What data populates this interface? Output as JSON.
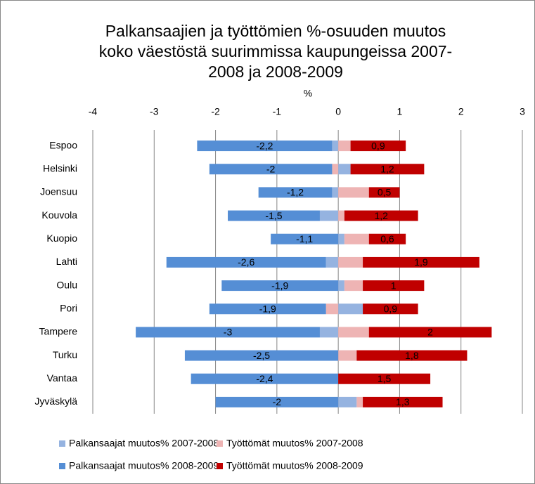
{
  "chart_data": {
    "type": "stacked_hbar",
    "title": [
      "Palkansaajien ja työttömien %-osuuden muutos",
      "koko väestöstä suurimmissa kaupungeissa 2007-",
      "2008 ja 2008-2009"
    ],
    "x_label": "%",
    "categories": [
      "Espoo",
      "Helsinki",
      "Joensuu",
      "Kouvola",
      "Kuopio",
      "Lahti",
      "Oulu",
      "Pori",
      "Tampere",
      "Turku",
      "Vantaa",
      "Jyväskylä"
    ],
    "series": [
      {
        "name": "Palkansaajat muutos% 2007-2008",
        "color": "#95b3e0",
        "values": [
          -0.1,
          0.2,
          -0.1,
          -0.3,
          0.1,
          -0.2,
          0.1,
          0.4,
          -0.3,
          0,
          0,
          0.3
        ]
      },
      {
        "name": "Työttömät muutos% 2007-2008",
        "color": "#eeb4b4",
        "values": [
          0.2,
          -0.1,
          0.5,
          0.1,
          0.4,
          0.4,
          0.3,
          -0.2,
          0.5,
          0.3,
          0,
          0.1
        ]
      },
      {
        "name": "Palkansaajat muutos% 2008-2009",
        "color": "#558ed5",
        "values": [
          -2.2,
          -2,
          -1.2,
          -1.5,
          -1.1,
          -2.6,
          -1.9,
          -1.9,
          -3,
          -2.5,
          -2.4,
          -2
        ],
        "value_labels": [
          "-2,2",
          "-2",
          "-1,2",
          "-1,5",
          "-1,1",
          "-2,6",
          "-1,9",
          "-1,9",
          "-3",
          "-2,5",
          "-2,4",
          "-2"
        ]
      },
      {
        "name": "Työttömät muutos% 2008-2009",
        "color": "#c00000",
        "values": [
          0.9,
          1.2,
          0.5,
          1.2,
          0.6,
          1.9,
          1,
          0.9,
          2,
          1.8,
          1.5,
          1.3
        ],
        "value_labels": [
          "0,9",
          "1,2",
          "0,5",
          "1,2",
          "0,6",
          "1,9",
          "1",
          "0,9",
          "2",
          "1,8",
          "1,5",
          "1,3"
        ]
      }
    ],
    "xlim": [
      -4,
      3
    ],
    "xticks": [
      -4,
      -3,
      -2,
      -1,
      0,
      1,
      2,
      3
    ],
    "grid": true
  }
}
